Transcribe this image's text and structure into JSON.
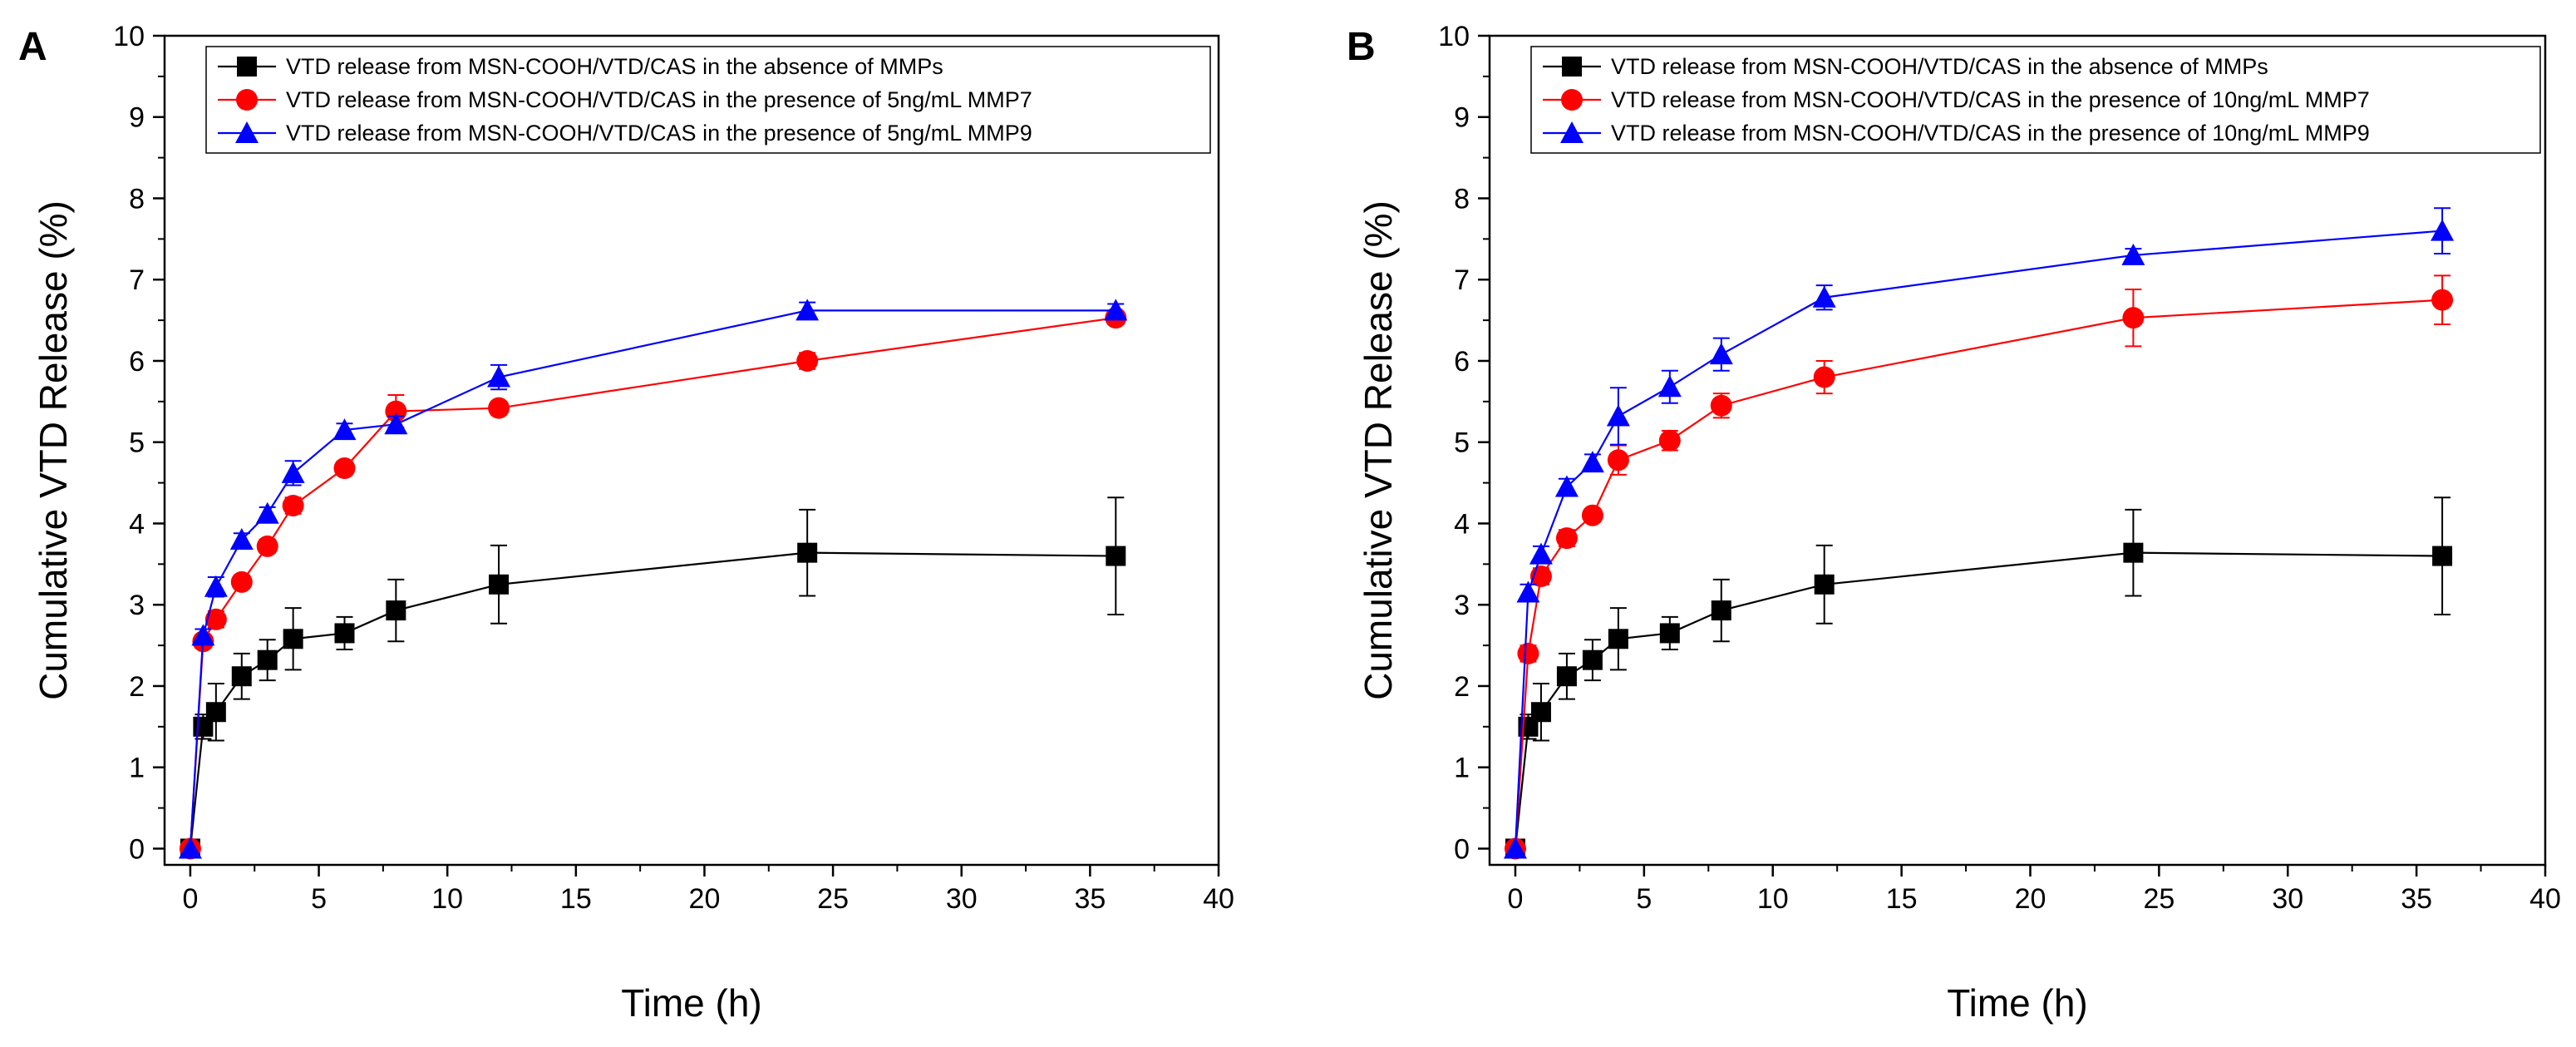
{
  "chart_data": [
    {
      "type": "line",
      "panel_label": "A",
      "xlabel": "Time (h)",
      "ylabel": "Cumulative VTD Release (%)",
      "xlim": [
        -1,
        40
      ],
      "ylim": [
        -0.2,
        10
      ],
      "xticks": [
        "0",
        "5",
        "10",
        "15",
        "20",
        "25",
        "30",
        "35",
        "40"
      ],
      "yticks": [
        "0",
        "1",
        "2",
        "3",
        "4",
        "5",
        "6",
        "7",
        "8",
        "9",
        "10"
      ],
      "legend_position": "top-right",
      "series": [
        {
          "name": "VTD release from MSN-COOH/VTD/CAS in the absence of MMPs",
          "color": "#000000",
          "marker": "square",
          "x": [
            0,
            0.5,
            1,
            2,
            3,
            4,
            6,
            8,
            12,
            24,
            36
          ],
          "y": [
            0,
            1.5,
            1.68,
            2.12,
            2.32,
            2.58,
            2.65,
            2.93,
            3.25,
            3.64,
            3.6
          ],
          "err": [
            0,
            0.15,
            0.35,
            0.28,
            0.25,
            0.38,
            0.2,
            0.38,
            0.48,
            0.53,
            0.72
          ]
        },
        {
          "name": "VTD release from MSN-COOH/VTD/CAS in the presence of 5ng/mL MMP7",
          "color": "#ff0000",
          "marker": "circle",
          "x": [
            0,
            0.5,
            1,
            2,
            3,
            4,
            6,
            8,
            12,
            24,
            36
          ],
          "y": [
            0,
            2.55,
            2.82,
            3.28,
            3.72,
            4.22,
            4.68,
            5.38,
            5.42,
            6.0,
            6.53
          ],
          "err": [
            0,
            0.08,
            0.1,
            0.08,
            0.08,
            0.1,
            0.08,
            0.2,
            0.08,
            0.1,
            0.08
          ]
        },
        {
          "name": "VTD release from MSN-COOH/VTD/CAS in the presence of 5ng/mL MMP9",
          "color": "#0000ff",
          "marker": "triangle",
          "x": [
            0,
            0.5,
            1,
            2,
            3,
            4,
            6,
            8,
            12,
            24,
            36
          ],
          "y": [
            0,
            2.62,
            3.22,
            3.8,
            4.12,
            4.62,
            5.15,
            5.22,
            5.8,
            6.62,
            6.62
          ],
          "err": [
            0,
            0.08,
            0.12,
            0.08,
            0.08,
            0.15,
            0.08,
            0.1,
            0.15,
            0.1,
            0.08
          ]
        }
      ]
    },
    {
      "type": "line",
      "panel_label": "B",
      "xlabel": "Time (h)",
      "ylabel": "Cumulative VTD Release (%)",
      "xlim": [
        -1,
        40
      ],
      "ylim": [
        -0.2,
        10
      ],
      "xticks": [
        "0",
        "5",
        "10",
        "15",
        "20",
        "25",
        "30",
        "35",
        "40"
      ],
      "yticks": [
        "0",
        "1",
        "2",
        "3",
        "4",
        "5",
        "6",
        "7",
        "8",
        "9",
        "10"
      ],
      "legend_position": "top-right",
      "series": [
        {
          "name": "VTD release from MSN-COOH/VTD/CAS in the absence of MMPs",
          "color": "#000000",
          "marker": "square",
          "x": [
            0,
            0.5,
            1,
            2,
            3,
            4,
            6,
            8,
            12,
            24,
            36
          ],
          "y": [
            0,
            1.5,
            1.68,
            2.12,
            2.32,
            2.58,
            2.65,
            2.93,
            3.25,
            3.64,
            3.6
          ],
          "err": [
            0,
            0.15,
            0.35,
            0.28,
            0.25,
            0.38,
            0.2,
            0.38,
            0.48,
            0.53,
            0.72
          ]
        },
        {
          "name": "VTD release from MSN-COOH/VTD/CAS in the presence of 10ng/mL MMP7",
          "color": "#ff0000",
          "marker": "circle",
          "x": [
            0,
            0.5,
            1,
            2,
            3,
            4,
            6,
            8,
            12,
            24,
            36
          ],
          "y": [
            0,
            2.4,
            3.35,
            3.82,
            4.1,
            4.78,
            5.02,
            5.45,
            5.8,
            6.53,
            6.75
          ],
          "err": [
            0,
            0.1,
            0.1,
            0.1,
            0.08,
            0.18,
            0.12,
            0.15,
            0.2,
            0.35,
            0.3
          ]
        },
        {
          "name": "VTD release from MSN-COOH/VTD/CAS in the presence of 10ng/mL MMP9",
          "color": "#0000ff",
          "marker": "triangle",
          "x": [
            0,
            0.5,
            1,
            2,
            3,
            4,
            6,
            8,
            12,
            24,
            36
          ],
          "y": [
            0,
            3.15,
            3.62,
            4.45,
            4.75,
            5.32,
            5.68,
            6.08,
            6.78,
            7.3,
            7.6
          ],
          "err": [
            0,
            0.1,
            0.1,
            0.1,
            0.1,
            0.35,
            0.2,
            0.2,
            0.15,
            0.08,
            0.28
          ]
        }
      ]
    }
  ]
}
